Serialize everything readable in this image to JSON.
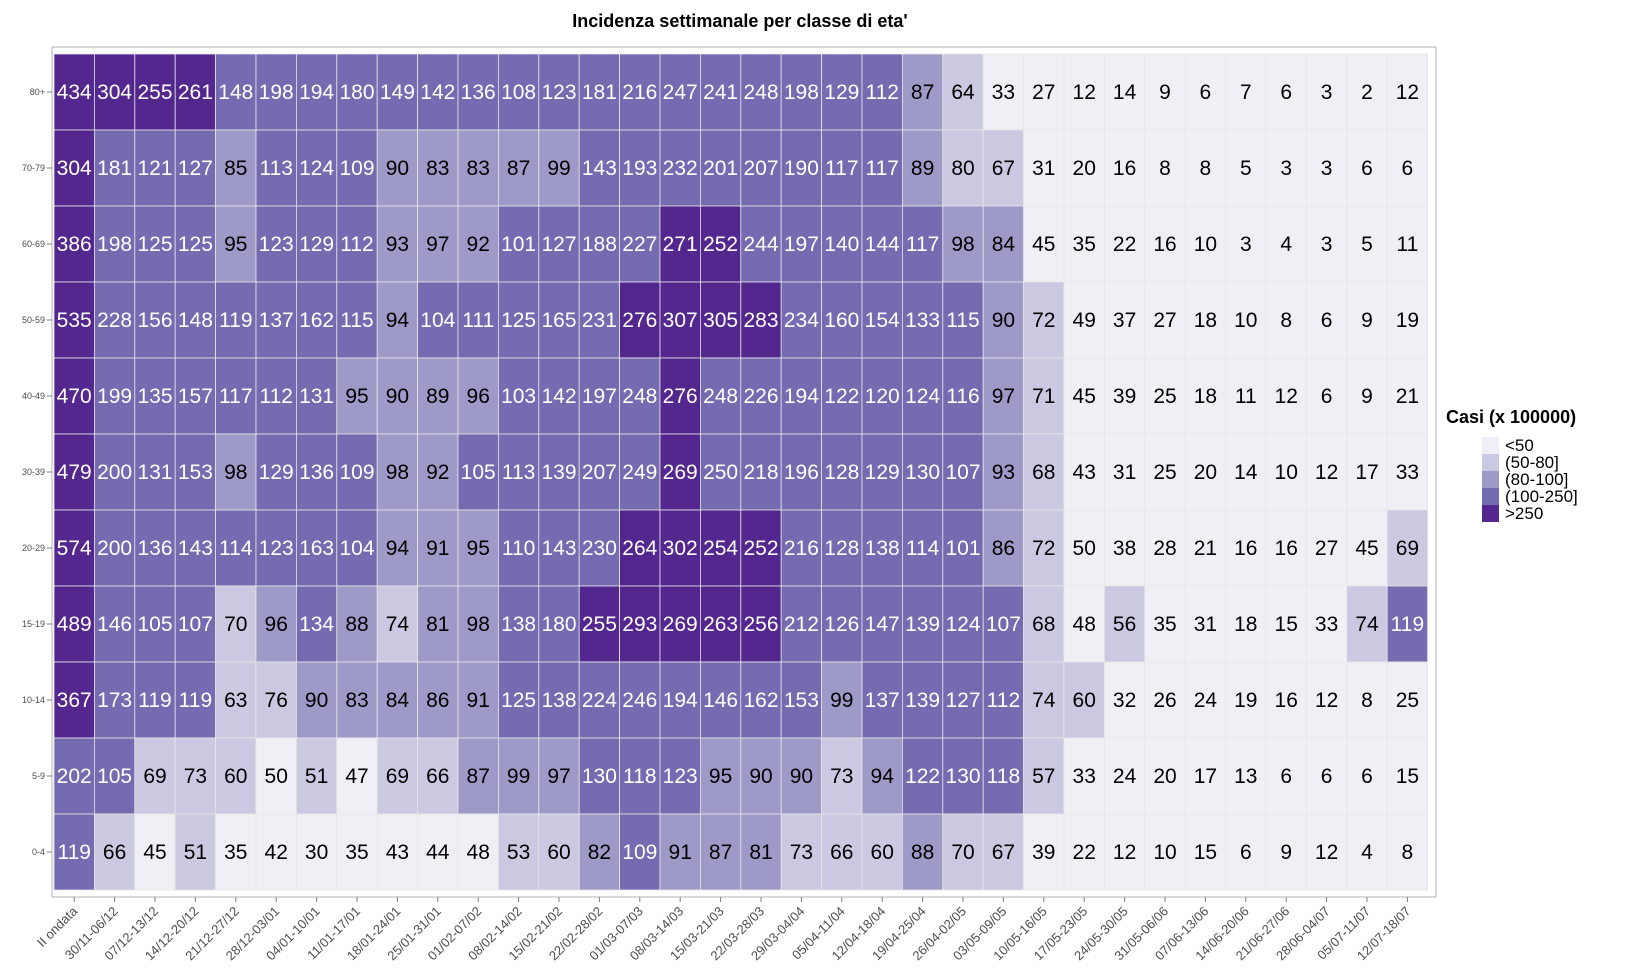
{
  "chart_data": {
    "type": "heatmap",
    "title": "Incidenza settimanale per classe di eta'",
    "x": [
      "II ondata",
      "30/11-06/12",
      "07/12-13/12",
      "14/12-20/12",
      "21/12-27/12",
      "28/12-03/01",
      "04/01-10/01",
      "11/01-17/01",
      "18/01-24/01",
      "25/01-31/01",
      "01/02-07/02",
      "08/02-14/02",
      "15/02-21/02",
      "22/02-28/02",
      "01/03-07/03",
      "08/03-14/03",
      "15/03-21/03",
      "22/03-28/03",
      "29/03-04/04",
      "05/04-11/04",
      "12/04-18/04",
      "19/04-25/04",
      "26/04-02/05",
      "03/05-09/05",
      "10/05-16/05",
      "17/05-23/05",
      "24/05-30/05",
      "31/05-06/06",
      "07/06-13/06",
      "14/06-20/06",
      "21/06-27/06",
      "28/06-04/07",
      "05/07-11/07",
      "12/07-18/07"
    ],
    "y": [
      "80+",
      "70-79",
      "60-69",
      "50-59",
      "40-49",
      "30-39",
      "20-29",
      "15-19",
      "10-14",
      "5-9",
      "0-4"
    ],
    "values": [
      [
        434,
        304,
        255,
        261,
        148,
        198,
        194,
        180,
        149,
        142,
        136,
        108,
        123,
        181,
        216,
        247,
        241,
        248,
        198,
        129,
        112,
        87,
        64,
        33,
        27,
        12,
        14,
        9,
        6,
        7,
        6,
        3,
        2,
        12
      ],
      [
        304,
        181,
        121,
        127,
        85,
        113,
        124,
        109,
        90,
        83,
        83,
        87,
        99,
        143,
        193,
        232,
        201,
        207,
        190,
        117,
        117,
        89,
        80,
        67,
        31,
        20,
        16,
        8,
        8,
        5,
        3,
        3,
        6,
        6
      ],
      [
        386,
        198,
        125,
        125,
        95,
        123,
        129,
        112,
        93,
        97,
        92,
        101,
        127,
        188,
        227,
        271,
        252,
        244,
        197,
        140,
        144,
        117,
        98,
        84,
        45,
        35,
        22,
        16,
        10,
        3,
        4,
        3,
        5,
        11
      ],
      [
        535,
        228,
        156,
        148,
        119,
        137,
        162,
        115,
        94,
        104,
        111,
        125,
        165,
        231,
        276,
        307,
        305,
        283,
        234,
        160,
        154,
        133,
        115,
        90,
        72,
        49,
        37,
        27,
        18,
        10,
        8,
        6,
        9,
        19
      ],
      [
        470,
        199,
        135,
        157,
        117,
        112,
        131,
        95,
        90,
        89,
        96,
        103,
        142,
        197,
        248,
        276,
        248,
        226,
        194,
        122,
        120,
        124,
        116,
        97,
        71,
        45,
        39,
        25,
        18,
        11,
        12,
        6,
        9,
        21
      ],
      [
        479,
        200,
        131,
        153,
        98,
        129,
        136,
        109,
        98,
        92,
        105,
        113,
        139,
        207,
        249,
        269,
        250,
        218,
        196,
        128,
        129,
        130,
        107,
        93,
        68,
        43,
        31,
        25,
        20,
        14,
        10,
        12,
        17,
        33
      ],
      [
        574,
        200,
        136,
        143,
        114,
        123,
        163,
        104,
        94,
        91,
        95,
        110,
        143,
        230,
        264,
        302,
        254,
        252,
        216,
        128,
        138,
        114,
        101,
        86,
        72,
        50,
        38,
        28,
        21,
        16,
        16,
        27,
        45,
        69
      ],
      [
        489,
        146,
        105,
        107,
        70,
        96,
        134,
        88,
        74,
        81,
        98,
        138,
        180,
        255,
        293,
        269,
        263,
        256,
        212,
        126,
        147,
        139,
        124,
        107,
        68,
        48,
        56,
        35,
        31,
        18,
        15,
        33,
        74,
        119
      ],
      [
        367,
        173,
        119,
        119,
        63,
        76,
        90,
        83,
        84,
        86,
        91,
        125,
        138,
        224,
        246,
        194,
        146,
        162,
        153,
        99,
        137,
        139,
        127,
        112,
        74,
        60,
        32,
        26,
        24,
        19,
        16,
        12,
        8,
        25
      ],
      [
        202,
        105,
        69,
        73,
        60,
        50,
        51,
        47,
        69,
        66,
        87,
        99,
        97,
        130,
        118,
        123,
        95,
        90,
        90,
        73,
        94,
        122,
        130,
        118,
        57,
        33,
        24,
        20,
        17,
        13,
        6,
        6,
        6,
        15
      ],
      [
        119,
        66,
        45,
        51,
        35,
        42,
        30,
        35,
        43,
        44,
        48,
        53,
        60,
        82,
        109,
        91,
        87,
        81,
        73,
        66,
        60,
        88,
        70,
        67,
        39,
        22,
        12,
        10,
        15,
        6,
        9,
        12,
        4,
        8
      ]
    ],
    "legend": {
      "title": "Casi (x 100000)",
      "placement": "right",
      "bins": [
        {
          "label": "<50",
          "color": "#f1eff6"
        },
        {
          "label": "(50-80]",
          "color": "#cbc9e2"
        },
        {
          "label": "(80-100]",
          "color": "#9e9ac8"
        },
        {
          "label": "(100-250]",
          "color": "#756bb1"
        },
        {
          "label": ">250",
          "color": "#54278f"
        }
      ]
    },
    "grid": true
  }
}
